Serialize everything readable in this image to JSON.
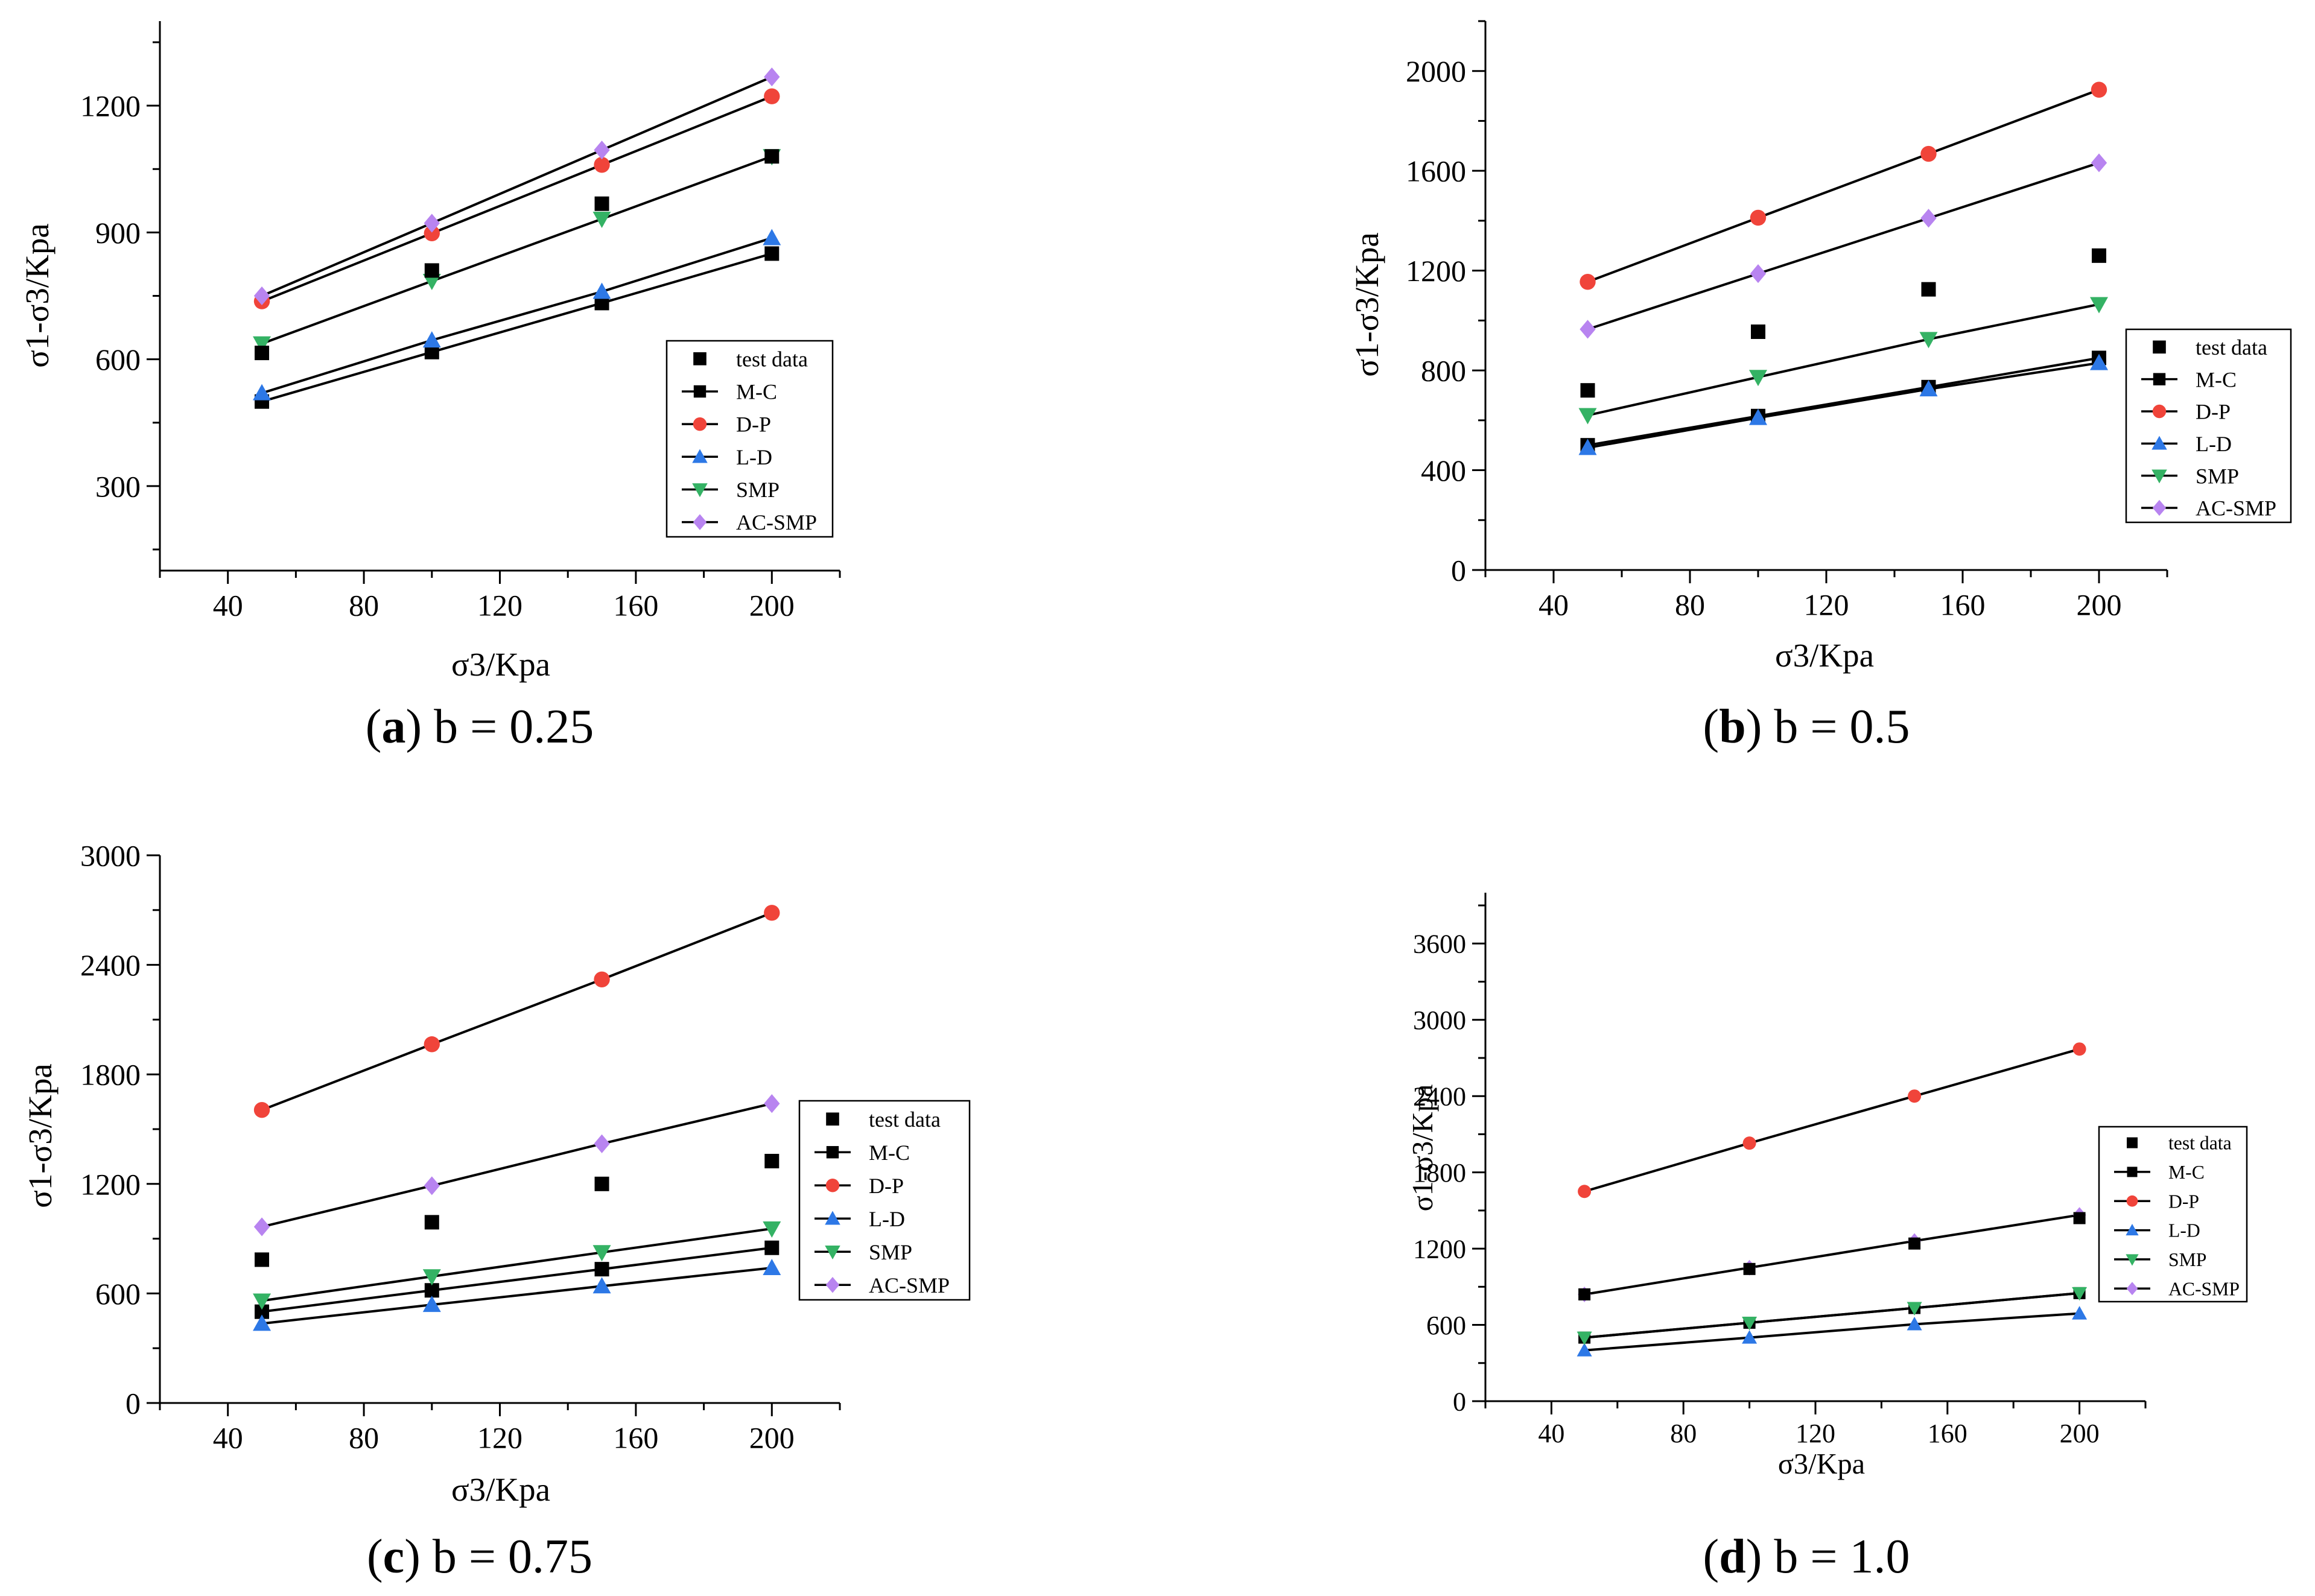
{
  "colors": {
    "test_data": "#000000",
    "M-C": "#000000",
    "D-P": "#f0443a",
    "L-D": "#2d78e6",
    "SMP": "#34b264",
    "AC-SMP": "#b884f0",
    "line": "#000000"
  },
  "chart_data": [
    {
      "id": "a",
      "type": "line",
      "caption_letter": "a",
      "caption_text": " b = 0.25",
      "xlabel": "σ3/Kpa",
      "ylabel": "σ1-σ3/Kpa",
      "x": [
        50,
        100,
        150,
        200
      ],
      "xlim": [
        20,
        220
      ],
      "ylim": [
        100,
        1400
      ],
      "xticks": [
        40,
        80,
        120,
        160,
        200
      ],
      "yticks": [
        300,
        600,
        900,
        1200
      ],
      "legend_position": "lower-right",
      "test_data": {
        "name": "test data",
        "values": [
          615,
          810,
          968,
          1080
        ]
      },
      "series": [
        {
          "name": "M-C",
          "marker": "square",
          "values": [
            500,
            617,
            733,
            850
          ]
        },
        {
          "name": "D-P",
          "marker": "circle",
          "values": [
            737,
            898,
            1060,
            1222
          ]
        },
        {
          "name": "L-D",
          "marker": "triangle-up",
          "values": [
            520,
            645,
            760,
            887
          ]
        },
        {
          "name": "SMP",
          "marker": "triangle-down",
          "values": [
            637,
            785,
            932,
            1080
          ]
        },
        {
          "name": "AC-SMP",
          "marker": "diamond",
          "values": [
            750,
            922,
            1095,
            1268
          ]
        }
      ]
    },
    {
      "id": "b",
      "type": "line",
      "caption_letter": "b",
      "caption_text": " b = 0.5",
      "xlabel": "σ3/Kpa",
      "ylabel": "σ1-σ3/Kpa",
      "x": [
        50,
        100,
        150,
        200
      ],
      "xlim": [
        20,
        220
      ],
      "ylim": [
        0,
        2200
      ],
      "xticks": [
        40,
        80,
        120,
        160,
        200
      ],
      "yticks": [
        0,
        400,
        800,
        1200,
        1600,
        2000
      ],
      "legend_position": "lower-right",
      "test_data": {
        "name": "test data",
        "values": [
          720,
          955,
          1125,
          1260
        ]
      },
      "series": [
        {
          "name": "M-C",
          "marker": "square",
          "values": [
            500,
            617,
            733,
            850
          ]
        },
        {
          "name": "D-P",
          "marker": "circle",
          "values": [
            1155,
            1412,
            1668,
            1925
          ]
        },
        {
          "name": "L-D",
          "marker": "triangle-up",
          "values": [
            490,
            610,
            725,
            830
          ]
        },
        {
          "name": "SMP",
          "marker": "triangle-down",
          "values": [
            620,
            773,
            925,
            1065
          ]
        },
        {
          "name": "AC-SMP",
          "marker": "diamond",
          "values": [
            965,
            1188,
            1410,
            1632
          ]
        }
      ]
    },
    {
      "id": "c",
      "type": "line",
      "caption_letter": "c",
      "caption_text": " b = 0.75",
      "xlabel": "σ3/Kpa",
      "ylabel": "σ1-σ3/Kpa",
      "x": [
        50,
        100,
        150,
        200
      ],
      "xlim": [
        20,
        220
      ],
      "ylim": [
        0,
        3000
      ],
      "xticks": [
        40,
        80,
        120,
        160,
        200
      ],
      "yticks": [
        0,
        600,
        1200,
        1800,
        2400,
        3000
      ],
      "legend_position": "lower-right",
      "test_data": {
        "name": "test data",
        "values": [
          785,
          990,
          1200,
          1325
        ]
      },
      "series": [
        {
          "name": "M-C",
          "marker": "square",
          "values": [
            500,
            617,
            733,
            850
          ]
        },
        {
          "name": "D-P",
          "marker": "circle",
          "values": [
            1605,
            1965,
            2320,
            2685
          ]
        },
        {
          "name": "L-D",
          "marker": "triangle-up",
          "values": [
            435,
            538,
            640,
            740
          ]
        },
        {
          "name": "SMP",
          "marker": "triangle-down",
          "values": [
            560,
            693,
            825,
            955
          ]
        },
        {
          "name": "AC-SMP",
          "marker": "diamond",
          "values": [
            965,
            1190,
            1420,
            1640
          ]
        }
      ]
    },
    {
      "id": "d",
      "type": "line",
      "caption_letter": "d",
      "caption_text": " b = 1.0",
      "xlabel": "σ3/Kpa",
      "ylabel": "σ1-σ3/Kpa",
      "x": [
        50,
        100,
        150,
        200
      ],
      "xlim": [
        20,
        220
      ],
      "ylim": [
        0,
        4000
      ],
      "xticks": [
        40,
        80,
        120,
        160,
        200
      ],
      "yticks": [
        0,
        600,
        1200,
        1800,
        2400,
        3000,
        3600
      ],
      "legend_position": "lower-right",
      "test_data": {
        "name": "test data",
        "values": [
          840,
          1040,
          1240,
          1440
        ]
      },
      "series": [
        {
          "name": "M-C",
          "marker": "square",
          "values": [
            500,
            617,
            733,
            850
          ]
        },
        {
          "name": "D-P",
          "marker": "circle",
          "values": [
            1650,
            2030,
            2400,
            2770
          ]
        },
        {
          "name": "L-D",
          "marker": "triangle-up",
          "values": [
            400,
            500,
            605,
            690
          ]
        },
        {
          "name": "SMP",
          "marker": "triangle-down",
          "values": [
            500,
            617,
            733,
            850
          ]
        },
        {
          "name": "AC-SMP",
          "marker": "diamond",
          "values": [
            840,
            1050,
            1260,
            1465
          ]
        }
      ]
    }
  ]
}
